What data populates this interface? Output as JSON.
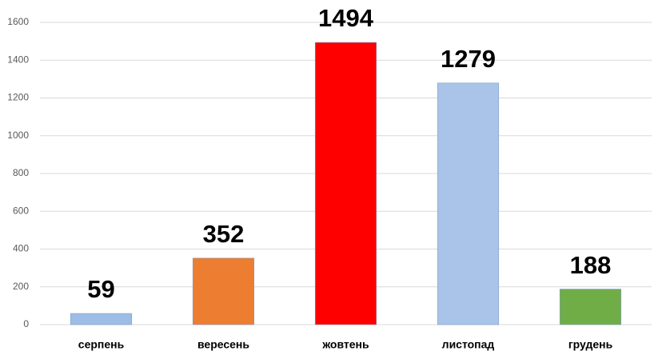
{
  "chart_data": {
    "type": "bar",
    "categories": [
      "серпень",
      "вересень",
      "жовтень",
      "листопад",
      "грудень"
    ],
    "values": [
      59,
      352,
      1494,
      1279,
      188
    ],
    "colors": [
      "#9dbde6",
      "#ed7d31",
      "#ff0000",
      "#a9c4e8",
      "#70ad47"
    ],
    "ylim": [
      0,
      1600
    ],
    "yticks": [
      0,
      200,
      400,
      600,
      800,
      1000,
      1200,
      1400,
      1600
    ],
    "grid": true
  }
}
